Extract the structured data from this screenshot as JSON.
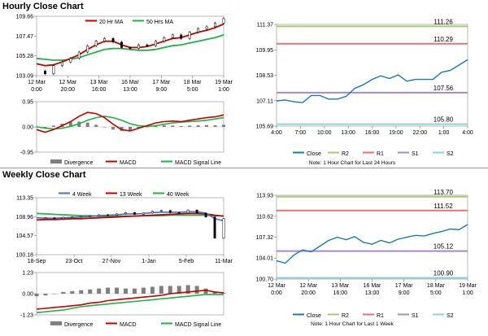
{
  "sections": {
    "hourly_title": "Hourly Close Chart",
    "weekly_title": "Weekly Close Chart"
  },
  "colors": {
    "ma_short": "#c00000",
    "ma_long": "#22b04a",
    "close": "#1f78b4",
    "r2": "#a8cc6e",
    "r1": "#e57373",
    "s1": "#a58cc4",
    "s2": "#8fd0de",
    "candle": "#000000",
    "divergence": "#7f7f7f",
    "macd": "#c00000",
    "macd_signal": "#22b04a",
    "tick_blue": "#4472c4"
  },
  "chart_data": [
    {
      "id": "hourly-price",
      "type": "line",
      "title": "Hourly Close Chart",
      "legend": [
        "20 Hr MA",
        "50 Hrs MA"
      ],
      "yticks": [
        103.09,
        105.28,
        107.47,
        109.66
      ],
      "ylim": [
        103.09,
        109.66
      ],
      "xticks": [
        [
          "12 Mar",
          "0:00"
        ],
        [
          "12 Mar",
          "20:00"
        ],
        [
          "13 Mar",
          "16:00"
        ],
        [
          "16 Mar",
          "13:00"
        ],
        [
          "17 Mar",
          "9:00"
        ],
        [
          "18 Mar",
          "5:00"
        ],
        [
          "19 Mar",
          "1:00"
        ]
      ],
      "series": [
        {
          "name": "Close",
          "values": [
            103.6,
            103.3,
            104.2,
            104.6,
            105.0,
            105.7,
            106.4,
            106.9,
            107.2,
            106.8,
            106.2,
            106.1,
            106.5,
            106.4,
            106.9,
            107.3,
            107.6,
            107.2,
            107.9,
            108.3,
            108.5,
            108.9,
            109.4
          ]
        },
        {
          "name": "20 Hr MA",
          "values": [
            104.4,
            104.2,
            104.3,
            104.6,
            105.0,
            105.4,
            106.0,
            106.5,
            106.9,
            106.9,
            106.5,
            106.2,
            106.2,
            106.3,
            106.6,
            106.9,
            107.2,
            107.3,
            107.6,
            107.9,
            108.1,
            108.4,
            108.8
          ]
        },
        {
          "name": "50 Hrs MA",
          "values": [
            105.0,
            104.9,
            104.8,
            104.8,
            104.9,
            105.1,
            105.4,
            105.7,
            106.0,
            106.1,
            106.1,
            106.0,
            105.9,
            105.9,
            106.0,
            106.2,
            106.4,
            106.5,
            106.7,
            106.9,
            107.1,
            107.3,
            107.6
          ]
        }
      ]
    },
    {
      "id": "hourly-macd",
      "type": "bar",
      "yticks": [
        0.95,
        0.0,
        -0.95
      ],
      "ylim": [
        -0.95,
        0.95
      ],
      "legend": [
        "Divergence",
        "MACD",
        "MACD Signal Line"
      ],
      "series": [
        {
          "name": "Divergence",
          "values": [
            0.0,
            -0.05,
            0.05,
            0.12,
            0.18,
            0.2,
            0.16,
            0.08,
            0.0,
            -0.1,
            -0.15,
            -0.12,
            -0.05,
            0.0,
            0.04,
            0.06,
            0.05,
            0.03,
            0.05,
            0.06,
            0.07,
            0.06,
            0.08
          ]
        },
        {
          "name": "MACD",
          "values": [
            -0.1,
            -0.2,
            -0.1,
            0.05,
            0.2,
            0.4,
            0.55,
            0.5,
            0.35,
            0.1,
            -0.1,
            -0.15,
            -0.05,
            0.05,
            0.15,
            0.2,
            0.22,
            0.2,
            0.25,
            0.3,
            0.35,
            0.38,
            0.45
          ]
        },
        {
          "name": "MACD Signal Line",
          "values": [
            0.0,
            -0.05,
            -0.08,
            -0.05,
            0.02,
            0.12,
            0.25,
            0.35,
            0.4,
            0.35,
            0.25,
            0.12,
            0.05,
            0.02,
            0.05,
            0.1,
            0.15,
            0.18,
            0.2,
            0.22,
            0.25,
            0.3,
            0.35
          ]
        }
      ]
    },
    {
      "id": "hourly-close",
      "type": "line",
      "yticks": [
        111.37,
        109.95,
        108.53,
        107.11,
        105.69
      ],
      "ylim": [
        105.69,
        111.37
      ],
      "xticks": [
        "4:00",
        "7:00",
        "10:00",
        "13:00",
        "16:00",
        "19:00",
        "22:00",
        "1:00",
        "4:00"
      ],
      "levels": [
        {
          "name": "R2",
          "value": 111.26
        },
        {
          "name": "R1",
          "value": 110.29
        },
        {
          "name": "S1",
          "value": 107.56
        },
        {
          "name": "S2",
          "value": 105.8
        }
      ],
      "legend": [
        "Close",
        "R2",
        "R1",
        "S1",
        "S2"
      ],
      "note": "Note: 1 Hour Chart for Last 24 Hours",
      "series": [
        {
          "name": "Close",
          "values": [
            107.1,
            107.15,
            107.05,
            107.0,
            107.4,
            107.4,
            107.2,
            107.2,
            107.35,
            107.8,
            108.0,
            108.3,
            108.5,
            108.35,
            108.55,
            108.2,
            108.3,
            108.3,
            108.3,
            108.7,
            108.8,
            109.1,
            109.4
          ]
        }
      ]
    },
    {
      "id": "weekly-price",
      "type": "line",
      "title": "Weekly Close Chart",
      "legend": [
        "4 Week",
        "13 Week",
        "40 Week"
      ],
      "yticks": [
        113.35,
        108.96,
        104.57,
        100.18
      ],
      "ylim": [
        100.18,
        113.35
      ],
      "xticks": [
        "18-Sep",
        "23-Oct",
        "27-Nov",
        "1-Jan",
        "5-Feb",
        "11-Mar"
      ],
      "series": [
        {
          "name": "Close",
          "values": [
            108.6,
            108.7,
            108.5,
            108.8,
            108.9,
            109.0,
            109.1,
            109.4,
            109.3,
            109.6,
            109.9,
            109.5,
            109.8,
            110.2,
            110.4,
            109.9,
            109.8,
            110.5,
            109.8,
            108.9,
            104.0,
            108.5
          ]
        },
        {
          "name": "4 Week",
          "values": [
            108.7,
            108.6,
            108.6,
            108.7,
            108.8,
            108.9,
            109.0,
            109.2,
            109.3,
            109.4,
            109.6,
            109.6,
            109.7,
            109.9,
            110.0,
            110.0,
            110.0,
            110.1,
            110.1,
            109.8,
            108.5,
            108.0
          ]
        },
        {
          "name": "13 Week",
          "values": [
            108.2,
            108.3,
            108.3,
            108.4,
            108.5,
            108.5,
            108.6,
            108.7,
            108.8,
            108.9,
            109.0,
            109.1,
            109.2,
            109.3,
            109.4,
            109.5,
            109.6,
            109.7,
            109.7,
            109.6,
            109.3,
            109.1
          ]
        },
        {
          "name": "40 Week",
          "values": [
            109.7,
            109.6,
            109.5,
            109.4,
            109.3,
            109.2,
            109.2,
            109.1,
            109.1,
            109.1,
            109.1,
            109.1,
            109.2,
            109.2,
            109.2,
            109.3,
            109.3,
            109.3,
            109.3,
            109.3,
            109.2,
            109.1
          ]
        }
      ]
    },
    {
      "id": "weekly-macd",
      "type": "bar",
      "yticks": [
        1.23,
        0.0,
        -1.23
      ],
      "ylim": [
        -1.23,
        1.23
      ],
      "legend": [
        "Divergence",
        "MACD",
        "MACD Signal Line"
      ],
      "series": [
        {
          "name": "Divergence",
          "values": [
            -0.15,
            -0.1,
            0.0,
            0.1,
            0.15,
            0.2,
            0.25,
            0.3,
            0.35,
            0.35,
            0.3,
            0.3,
            0.35,
            0.4,
            0.45,
            0.45,
            0.45,
            0.5,
            0.45,
            0.3,
            0.1,
            0.05
          ]
        },
        {
          "name": "MACD",
          "values": [
            -0.9,
            -0.85,
            -0.8,
            -0.75,
            -0.7,
            -0.65,
            -0.55,
            -0.5,
            -0.4,
            -0.35,
            -0.3,
            -0.25,
            -0.2,
            -0.15,
            -0.1,
            0.0,
            0.05,
            0.1,
            0.15,
            0.2,
            0.1,
            0.05
          ]
        },
        {
          "name": "MACD Signal Line",
          "values": [
            -1.1,
            -1.05,
            -1.0,
            -0.95,
            -0.85,
            -0.75,
            -0.7,
            -0.65,
            -0.6,
            -0.55,
            -0.5,
            -0.45,
            -0.4,
            -0.35,
            -0.3,
            -0.25,
            -0.2,
            -0.15,
            -0.1,
            -0.05,
            -0.05,
            -0.05
          ]
        }
      ]
    },
    {
      "id": "weekly-close",
      "type": "line",
      "yticks": [
        113.93,
        110.62,
        107.32,
        104.01,
        100.7
      ],
      "ylim": [
        100.7,
        113.93
      ],
      "xticks": [
        [
          "12 Mar",
          "0:00"
        ],
        [
          "12 Mar",
          "20:00"
        ],
        [
          "13 Mar",
          "16:00"
        ],
        [
          "16 Mar",
          "13:00"
        ],
        [
          "17 Mar",
          "9:00"
        ],
        [
          "18 Mar",
          "5:00"
        ],
        [
          "19 Mar",
          "1:00"
        ]
      ],
      "levels": [
        {
          "name": "R2",
          "value": 113.7
        },
        {
          "name": "R1",
          "value": 111.52
        },
        {
          "name": "S1",
          "value": 105.12
        },
        {
          "name": "S2",
          "value": 100.9
        }
      ],
      "legend": [
        "Close",
        "R2",
        "R1",
        "S1",
        "S2"
      ],
      "note": "Note: 1 Hour Chart for Last 1 Week",
      "series": [
        {
          "name": "Close",
          "values": [
            103.6,
            103.2,
            104.5,
            105.3,
            105.0,
            105.9,
            106.8,
            107.3,
            106.9,
            107.4,
            106.5,
            106.2,
            106.8,
            106.4,
            107.0,
            107.3,
            107.6,
            107.5,
            107.9,
            108.2,
            108.6,
            108.5,
            109.3
          ]
        }
      ]
    }
  ]
}
